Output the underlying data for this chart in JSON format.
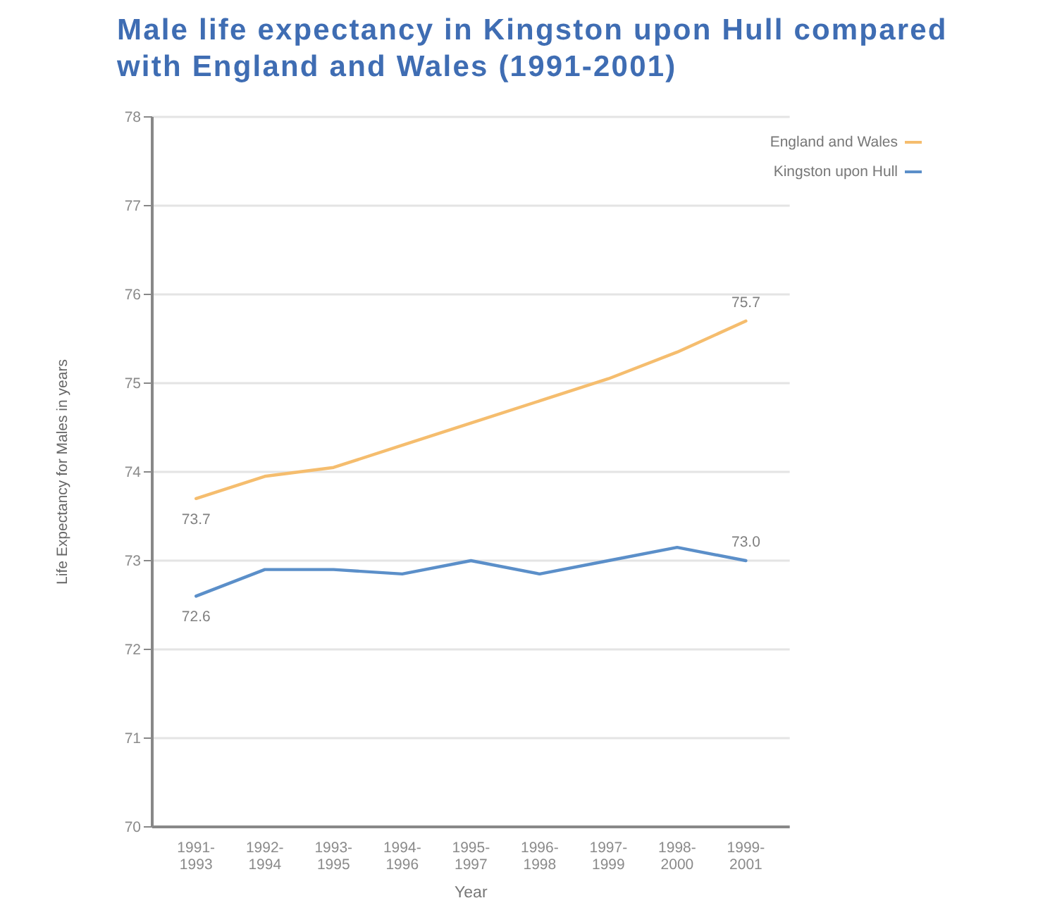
{
  "chart_data": {
    "type": "line",
    "title": "Male life expectancy in Kingston upon Hull compared with England and Wales (1991-2001)",
    "xlabel": "Year",
    "ylabel": "Life Expectancy for Males in years",
    "categories": [
      "1991-1993",
      "1992-1994",
      "1993-1995",
      "1994-1996",
      "1995-1997",
      "1996-1998",
      "1997-1999",
      "1998-2000",
      "1999-2001"
    ],
    "series": [
      {
        "name": "England and Wales",
        "color": "#f5bd6e",
        "values": [
          73.7,
          73.95,
          74.05,
          74.3,
          74.55,
          74.8,
          75.05,
          75.35,
          75.7
        ],
        "value_labels": [
          "73.7",
          null,
          null,
          null,
          null,
          null,
          null,
          null,
          "75.7"
        ]
      },
      {
        "name": "Kingston upon Hull",
        "color": "#5b8fc9",
        "values": [
          72.6,
          72.9,
          72.9,
          72.85,
          73.0,
          72.85,
          73.0,
          73.15,
          73.0
        ],
        "value_labels": [
          "72.6",
          null,
          null,
          null,
          null,
          null,
          null,
          null,
          "73.0"
        ]
      }
    ],
    "ylim": [
      70,
      78
    ],
    "yticks": [
      70,
      71,
      72,
      73,
      74,
      75,
      76,
      77,
      78
    ],
    "grid": "y",
    "legend": "top right"
  }
}
